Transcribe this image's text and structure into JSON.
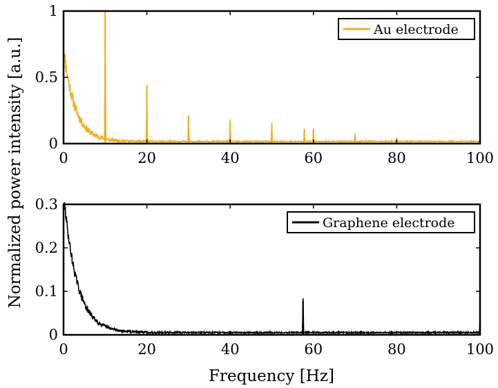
{
  "figure": {
    "ylabel": "Normalized power intensity [a.u.]",
    "xlabel": "Frequency [Hz]"
  },
  "colors": {
    "au": "#EDB120",
    "graphene": "#000000"
  },
  "chart_data": [
    {
      "type": "line",
      "legend": "Au electrode",
      "legend_position": "top-right",
      "xlim": [
        0,
        100
      ],
      "ylim": [
        0,
        1
      ],
      "xticks": [
        0,
        20,
        40,
        60,
        80,
        100
      ],
      "yticks": [
        0,
        0.5,
        1
      ],
      "ytick_labels": [
        "0",
        "0.5",
        "1"
      ],
      "background": {
        "decay_start": 0.7,
        "decay_scale": 2.8,
        "floor": 0.012,
        "noise": 0.06
      },
      "peaks": [
        {
          "x": 10,
          "y": 1.0
        },
        {
          "x": 20,
          "y": 0.43
        },
        {
          "x": 30,
          "y": 0.2
        },
        {
          "x": 40,
          "y": 0.165
        },
        {
          "x": 50,
          "y": 0.14
        },
        {
          "x": 57.8,
          "y": 0.1
        },
        {
          "x": 60,
          "y": 0.1
        },
        {
          "x": 70,
          "y": 0.055
        },
        {
          "x": 80,
          "y": 0.03
        }
      ]
    },
    {
      "type": "line",
      "legend": "Graphene electrode",
      "legend_position": "top-right",
      "xlim": [
        0,
        100
      ],
      "ylim": [
        0,
        0.3
      ],
      "xticks": [
        0,
        20,
        40,
        60,
        80,
        100
      ],
      "yticks": [
        0,
        0.1,
        0.2,
        0.3
      ],
      "ytick_labels": [
        "0",
        "0.1",
        "0.2",
        "0.3"
      ],
      "background": {
        "decay_start": 0.32,
        "decay_scale": 3.2,
        "floor": 0.004,
        "noise": 0.012
      },
      "peaks": [
        {
          "x": 57.5,
          "y": 0.078
        },
        {
          "x": 100,
          "y": 0.03
        }
      ]
    }
  ]
}
